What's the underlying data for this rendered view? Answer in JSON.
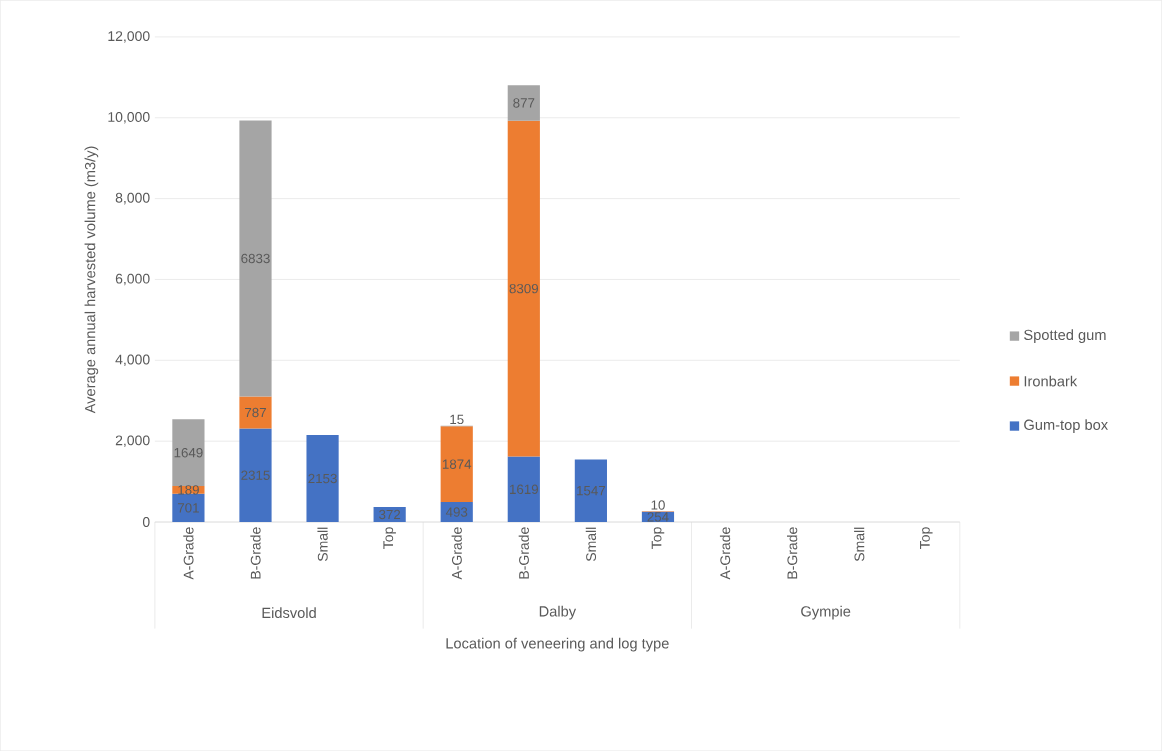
{
  "chart_data": {
    "type": "bar",
    "stacked": true,
    "xlabel": "Location of veneering and log type",
    "ylabel": "Average annual harvested volume (m3/y)",
    "categories": [
      "A-Grade",
      "B-Grade",
      "Small",
      "Top",
      "A-Grade",
      "B-Grade",
      "Small",
      "Top",
      "A-Grade",
      "B-Grade",
      "Small",
      "Top"
    ],
    "annotations": [
      "Eidsvold",
      "Dalby",
      "Gympie"
    ],
    "series": [
      {
        "name": "Gum-top box",
        "color": "#4472c4",
        "values": [
          701,
          2315,
          2153,
          372,
          493,
          1619,
          1547,
          254,
          null,
          null,
          null,
          null
        ]
      },
      {
        "name": "Ironbark",
        "color": "#ed7d31",
        "values": [
          189,
          787,
          null,
          null,
          1874,
          8309,
          null,
          10,
          null,
          null,
          null,
          null
        ]
      },
      {
        "name": "Spotted gum",
        "color": "#a5a5a5",
        "values": [
          1649,
          6833,
          null,
          null,
          15,
          877,
          null,
          null,
          null,
          null,
          null,
          null
        ]
      }
    ],
    "ylim": [
      0,
      12000
    ],
    "yticks": [
      0,
      {
        "value": 2000,
        "label": "2,000"
      },
      {
        "value": 4000,
        "label": "4,000"
      },
      {
        "value": 6000,
        "label": "6,000"
      },
      {
        "value": 8000,
        "label": "8,000"
      },
      {
        "value": 10000,
        "label": "10,000"
      },
      {
        "value": 12000,
        "label": "12,000"
      }
    ],
    "grid": "y",
    "legend": "right",
    "data_labels": true
  }
}
